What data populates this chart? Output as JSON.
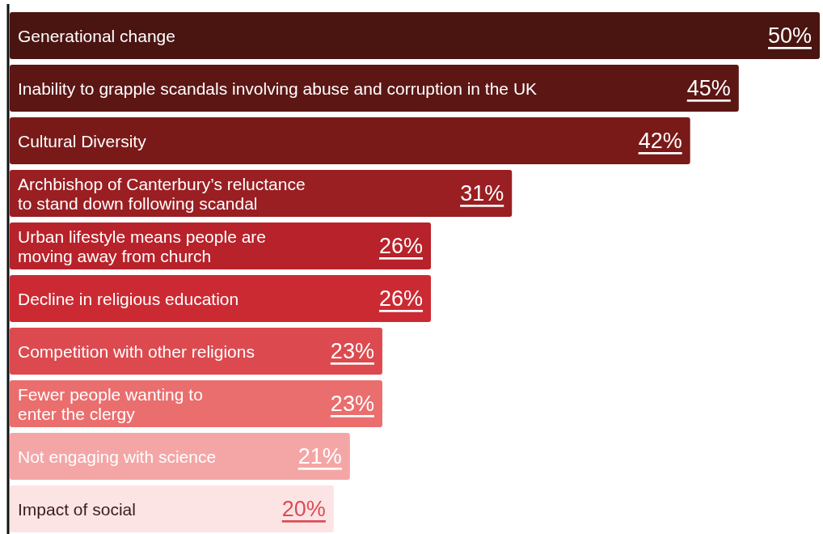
{
  "chart_data": {
    "type": "bar",
    "orientation": "horizontal",
    "value_labels": [
      "50%",
      "45%",
      "42%",
      "31%",
      "26%",
      "26%",
      "23%",
      "23%",
      "21%",
      "20%"
    ],
    "categories": [
      "Generational change",
      "Inability to grapple scandals involving abuse and corruption in the UK",
      "Cultural Diversity",
      "Archbishop of Canterbury’s reluctance\nto stand down following scandal",
      "Urban lifestyle means people are\nmoving away from church",
      "Decline in religious education",
      "Competition with other religions",
      "Fewer people wanting to\nenter the clergy",
      "Not engaging with science",
      "Impact of social"
    ],
    "values": [
      50,
      45,
      42,
      31,
      26,
      26,
      23,
      23,
      21,
      20
    ],
    "colors": [
      "#4a1511",
      "#5c1614",
      "#7a1a18",
      "#9a1f22",
      "#b8222a",
      "#cc2a33",
      "#dc4a4f",
      "#ea6e6e",
      "#f4a6a6",
      "#fde4e4"
    ]
  }
}
